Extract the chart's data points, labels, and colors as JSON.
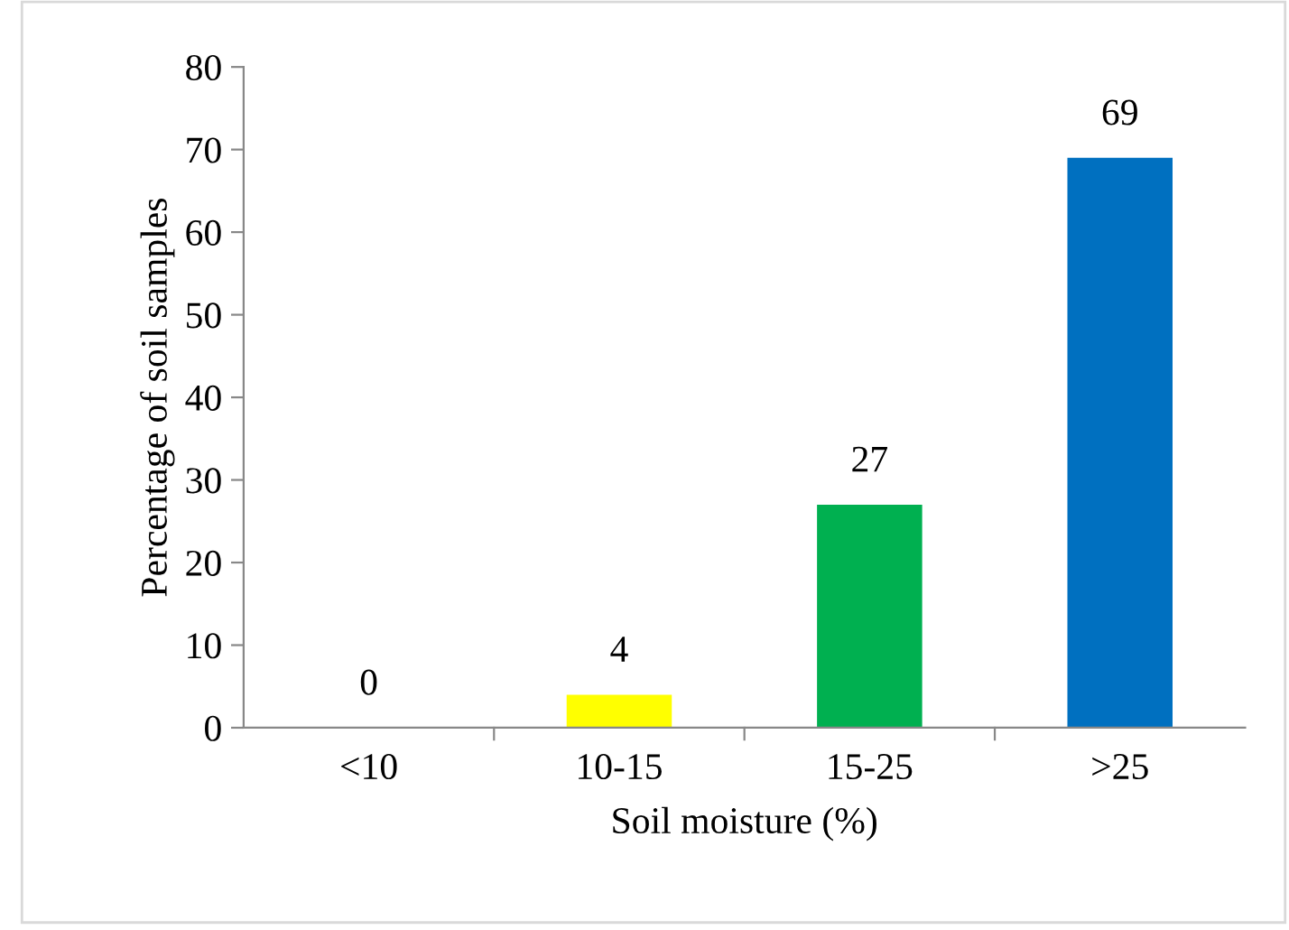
{
  "chart_data": {
    "type": "bar",
    "xlabel": "Soil moisture (%)",
    "ylabel": "Percentage of soil samples",
    "categories": [
      "<10",
      "10-15",
      "15-25",
      ">25"
    ],
    "values": [
      0,
      4,
      27,
      69
    ],
    "colors": [
      "#4f81bd",
      "#ffff00",
      "#00b050",
      "#0070c0"
    ],
    "ylim": [
      0,
      80
    ],
    "yticks": [
      0,
      10,
      20,
      30,
      40,
      50,
      60,
      70,
      80
    ],
    "grid": false,
    "legend": false,
    "data_labels": true
  }
}
